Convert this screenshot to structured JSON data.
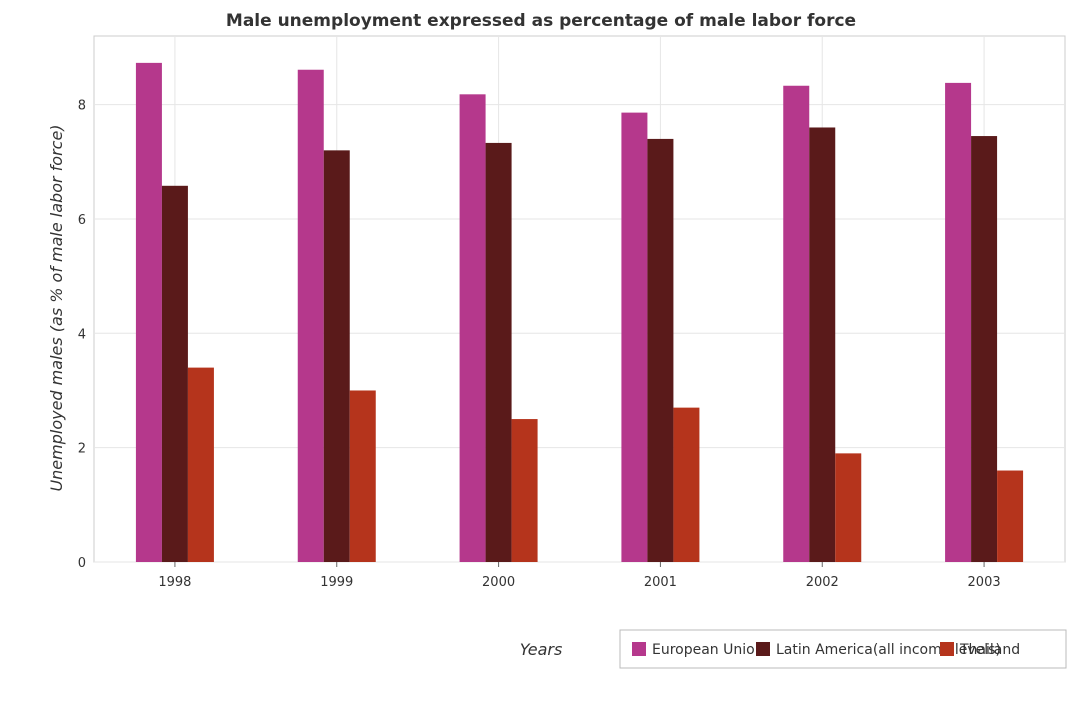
{
  "chart_data": {
    "type": "bar",
    "title": "Male unemployment expressed as percentage of male labor force",
    "xlabel": "Years",
    "ylabel": "Unemployed males (as % of male labor force)",
    "categories": [
      "1998",
      "1999",
      "2000",
      "2001",
      "2002",
      "2003"
    ],
    "ylim": [
      0,
      9.2
    ],
    "yticks": [
      0,
      2,
      4,
      6,
      8
    ],
    "grid": true,
    "legend_position": "bottom-right",
    "series": [
      {
        "name": "European Union",
        "color": "#b5388c",
        "values": [
          8.73,
          8.61,
          8.18,
          7.86,
          8.33,
          8.38
        ]
      },
      {
        "name": "Latin America(all income levels)",
        "color": "#5a1a1a",
        "values": [
          6.58,
          7.2,
          7.33,
          7.4,
          7.6,
          7.45
        ]
      },
      {
        "name": "Thailand",
        "color": "#b5341c",
        "values": [
          3.4,
          3.0,
          2.5,
          2.7,
          1.9,
          1.6
        ]
      }
    ]
  }
}
